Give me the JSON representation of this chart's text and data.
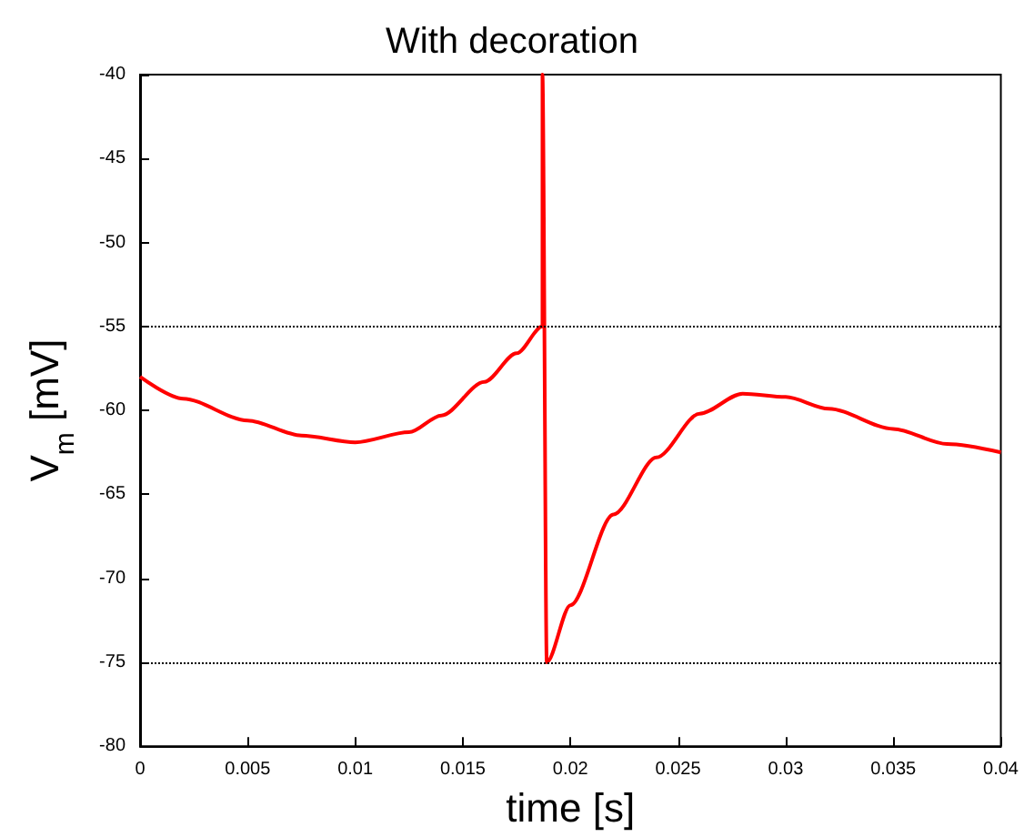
{
  "chart_data": {
    "type": "line",
    "title": "With decoration",
    "xlabel": "time [s]",
    "ylabel": "V$_{m}$ [mV]",
    "x": [
      0,
      0.002,
      0.005,
      0.0075,
      0.01,
      0.0125,
      0.014,
      0.016,
      0.0175,
      0.0187,
      0.0187,
      0.0189,
      0.02,
      0.022,
      0.024,
      0.026,
      0.028,
      0.03,
      0.032,
      0.035,
      0.0375,
      0.04
    ],
    "series": [
      {
        "color": "#ff0000",
        "values": [
          -58,
          -59.3,
          -60.6,
          -61.5,
          -61.9,
          -61.3,
          -60.3,
          -58.3,
          -56.6,
          -55,
          -40,
          -75,
          -71.6,
          -66.2,
          -62.8,
          -60.2,
          -59,
          -59.2,
          -59.9,
          -61.1,
          -62,
          -62.5
        ]
      }
    ],
    "xlim": [
      0,
      0.04
    ],
    "xticks": [
      0,
      0.005,
      0.01,
      0.015,
      0.02,
      0.025,
      0.03,
      0.035,
      0.04
    ],
    "ylim": [
      -80,
      -40
    ],
    "yticks": [
      -80,
      -75,
      -70,
      -65,
      -60,
      -55,
      -50,
      -45,
      -40
    ],
    "ref_lines": [
      {
        "axis": "y",
        "value": -55,
        "color": "#000000",
        "line_style": "dotted"
      },
      {
        "axis": "y",
        "value": -75,
        "color": "#000000",
        "line_style": "dotted"
      }
    ],
    "grid": false,
    "marker": "none",
    "line_style": "solid"
  }
}
